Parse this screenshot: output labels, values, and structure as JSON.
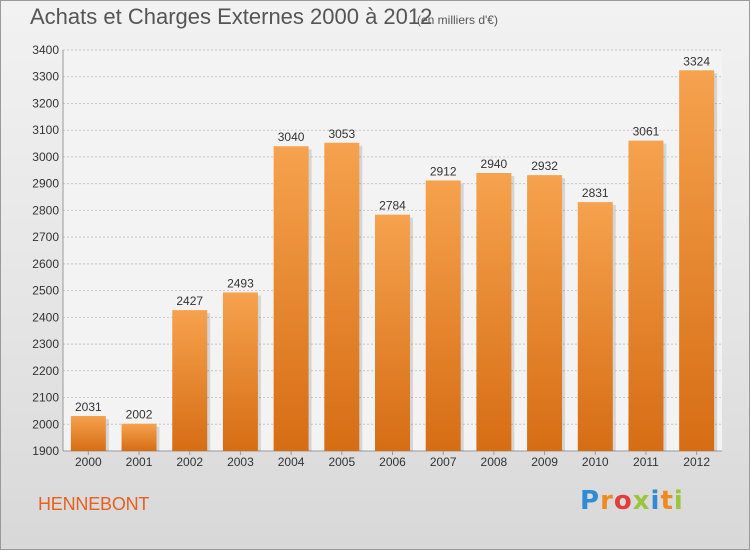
{
  "title": "Achats et Charges Externes 2000 à 2012",
  "subtitle": "(en milliers d'€)",
  "commune": "HENNEBONT",
  "logo": {
    "letters": [
      "P",
      "r",
      "o",
      "x",
      "i",
      "t",
      "i"
    ],
    "colors": [
      "#2e8bd6",
      "#f08a1c",
      "#e23d3d",
      "#9bc53d",
      "#2e8bd6",
      "#f08a1c",
      "#9bc53d"
    ]
  },
  "colors": {
    "bar_top": "#f6a24e",
    "bar_bottom": "#d66d14",
    "grid": "#c8c8c8",
    "axis_text": "#333333",
    "title": "#555555",
    "commune": "#e8601e"
  },
  "chart_data": {
    "type": "bar",
    "categories": [
      "2000",
      "2001",
      "2002",
      "2003",
      "2004",
      "2005",
      "2006",
      "2007",
      "2008",
      "2009",
      "2010",
      "2011",
      "2012"
    ],
    "values": [
      2031,
      2002,
      2427,
      2493,
      3040,
      3053,
      2784,
      2912,
      2940,
      2932,
      2831,
      3061,
      3324
    ],
    "ylim": [
      1900,
      3400
    ],
    "yticks": [
      1900,
      2000,
      2100,
      2200,
      2300,
      2400,
      2500,
      2600,
      2700,
      2800,
      2900,
      3000,
      3100,
      3200,
      3300,
      3400
    ],
    "grid": true,
    "title": "Achats et Charges Externes 2000 à 2012",
    "xlabel": "",
    "ylabel": ""
  }
}
